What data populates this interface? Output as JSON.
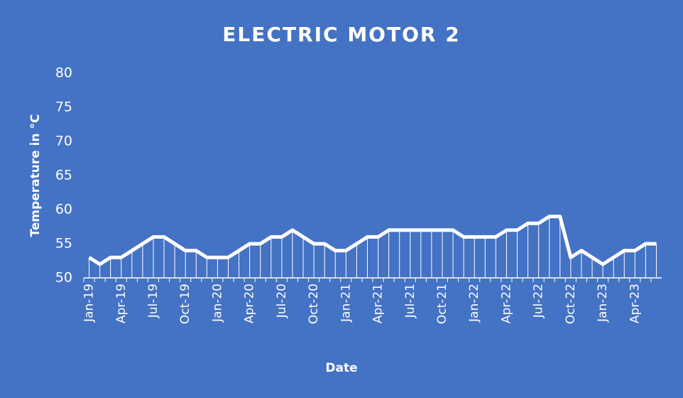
{
  "chart_data": {
    "type": "line",
    "title": "ELECTRIC MOTOR 2",
    "x_label": "Date",
    "y_label": "Temperature in °C",
    "categories": [
      "Jan-19",
      null,
      null,
      "Apr-19",
      null,
      null,
      "Jul-19",
      null,
      null,
      "Oct-19",
      null,
      null,
      "Jan-20",
      null,
      null,
      "Apr-20",
      null,
      null,
      "Jul-20",
      null,
      null,
      "Oct-20",
      null,
      null,
      "Jan-21",
      null,
      null,
      "Apr-21",
      null,
      null,
      "Jul-21",
      null,
      null,
      "Oct-21",
      null,
      null,
      "Jan-22",
      null,
      null,
      "Apr-22",
      null,
      null,
      "Jul-22",
      null,
      null,
      "Oct-22",
      null,
      null,
      "Jan-23",
      null,
      null,
      "Apr-23",
      null,
      null
    ],
    "values": [
      53,
      52,
      53,
      53,
      54,
      55,
      56,
      56,
      55,
      54,
      54,
      53,
      53,
      53,
      54,
      55,
      55,
      56,
      56,
      57,
      56,
      55,
      55,
      54,
      54,
      55,
      56,
      56,
      57,
      57,
      57,
      57,
      57,
      57,
      57,
      56,
      56,
      56,
      56,
      57,
      57,
      58,
      58,
      59,
      59,
      53,
      54,
      53,
      52,
      53,
      54,
      54,
      55,
      55
    ],
    "color": "#ffffff",
    "drop_lines": true,
    "ylim": [
      50,
      80
    ],
    "yticks": [
      50,
      55,
      60,
      65,
      70,
      75,
      80
    ]
  }
}
